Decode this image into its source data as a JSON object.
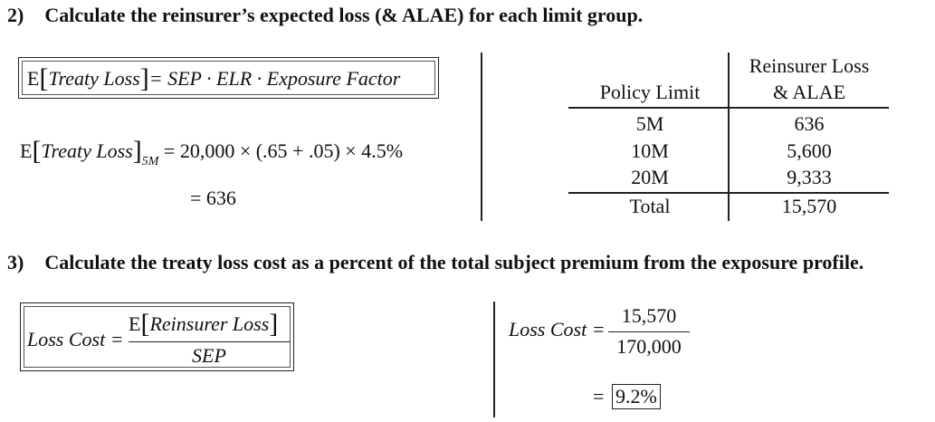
{
  "q2": {
    "number": "2)",
    "text": "Calculate the reinsurer’s expected loss (& ALAE) for each limit group.",
    "formula": {
      "E": "E",
      "term": "Treaty Loss",
      "rhs": "= SEP · ELR · Exposure Factor"
    },
    "calc": {
      "E": "E",
      "term": "Treaty Loss",
      "subscript": "5M",
      "rhs": "= 20,000 × (.65 + .05) × 4.5%",
      "result": "= 636"
    },
    "table": {
      "headers": {
        "col1": "Policy Limit",
        "col2_line1": "Reinsurer Loss",
        "col2_line2": "& ALAE"
      },
      "rows": [
        {
          "limit": "5M",
          "value": "636"
        },
        {
          "limit": "10M",
          "value": "5,600"
        },
        {
          "limit": "20M",
          "value": "9,333"
        }
      ],
      "total": {
        "label": "Total",
        "value": "15,570"
      }
    }
  },
  "q3": {
    "number": "3)",
    "text": "Calculate the treaty loss cost as a percent of the total subject premium from the exposure profile.",
    "formula": {
      "lhs": "Loss Cost =",
      "E": "E",
      "numerator_term": "Reinsurer Loss",
      "denominator": "SEP"
    },
    "calc": {
      "lhs": "Loss Cost =",
      "numerator": "15,570",
      "denominator": "170,000",
      "equals": "=",
      "result": "9.2%"
    }
  }
}
